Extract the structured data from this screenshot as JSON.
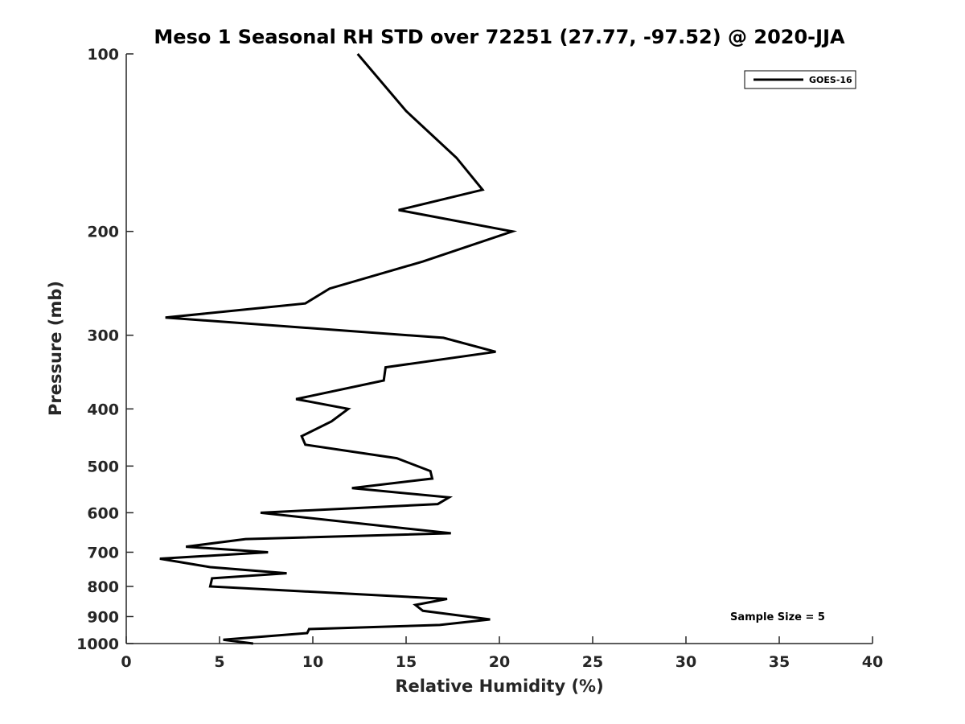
{
  "chart_data": {
    "type": "line",
    "title": "Meso 1 Seasonal RH STD over 72251 (27.77, -97.52) @ 2020-JJA",
    "xlabel": "Relative Humidity (%)",
    "ylabel": "Pressure (mb)",
    "xlim": [
      0,
      40
    ],
    "ylim": [
      1000,
      100
    ],
    "yscale": "log",
    "x_ticks": [
      0,
      5,
      10,
      15,
      20,
      25,
      30,
      35,
      40
    ],
    "y_ticks": [
      100,
      200,
      300,
      400,
      500,
      600,
      700,
      800,
      900,
      1000
    ],
    "grid": false,
    "legend_position": "top-right",
    "annotation": "Sample Size = 5",
    "series": [
      {
        "name": "GOES-16",
        "color": "#000000",
        "points": [
          [
            12.4,
            100
          ],
          [
            15.0,
            125
          ],
          [
            17.7,
            150
          ],
          [
            19.1,
            170
          ],
          [
            14.6,
            184
          ],
          [
            20.7,
            200
          ],
          [
            15.9,
            225
          ],
          [
            10.9,
            250
          ],
          [
            9.6,
            265
          ],
          [
            2.1,
            280
          ],
          [
            17.0,
            303
          ],
          [
            19.8,
            320
          ],
          [
            13.9,
            340
          ],
          [
            13.8,
            358
          ],
          [
            9.1,
            385
          ],
          [
            11.9,
            400
          ],
          [
            11.0,
            420
          ],
          [
            9.4,
            445
          ],
          [
            9.6,
            460
          ],
          [
            14.5,
            485
          ],
          [
            16.3,
            510
          ],
          [
            16.4,
            525
          ],
          [
            12.1,
            545
          ],
          [
            17.3,
            565
          ],
          [
            16.7,
            580
          ],
          [
            7.2,
            600
          ],
          [
            17.4,
            650
          ],
          [
            6.4,
            665
          ],
          [
            3.2,
            685
          ],
          [
            7.6,
            700
          ],
          [
            1.8,
            718
          ],
          [
            4.5,
            742
          ],
          [
            8.6,
            760
          ],
          [
            4.6,
            775
          ],
          [
            4.5,
            800
          ],
          [
            17.2,
            840
          ],
          [
            15.5,
            860
          ],
          [
            15.9,
            880
          ],
          [
            19.5,
            910
          ],
          [
            16.8,
            930
          ],
          [
            9.8,
            945
          ],
          [
            9.7,
            960
          ],
          [
            5.2,
            985
          ],
          [
            6.8,
            1000
          ]
        ]
      }
    ]
  }
}
